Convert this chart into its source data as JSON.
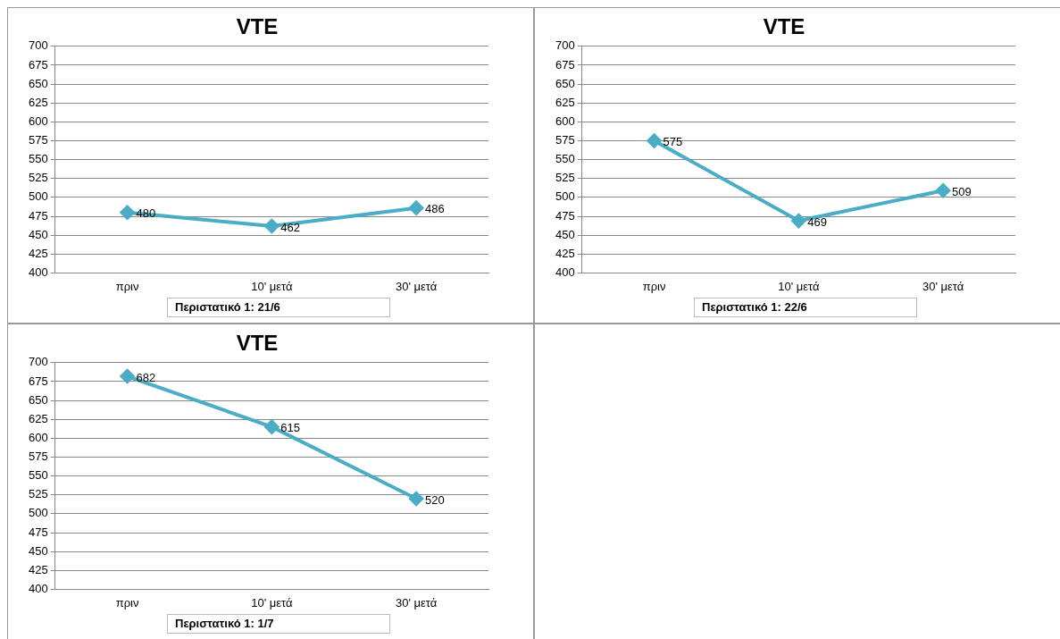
{
  "chart_data": [
    {
      "type": "line",
      "title": "VTE",
      "xlabel": "Περιστατικό 1: 21/6",
      "categories": [
        "πριν",
        "10' μετά",
        "30' μετά"
      ],
      "series": [
        {
          "color": "#4bacc6",
          "values": [
            480,
            462,
            486
          ]
        }
      ],
      "ylim": [
        400,
        700
      ],
      "yticks": [
        400,
        425,
        450,
        475,
        500,
        525,
        550,
        575,
        600,
        625,
        650,
        675,
        700
      ],
      "grid": "y",
      "marker": "diamond",
      "data_labels": true,
      "legend": false
    },
    {
      "type": "line",
      "title": "VTE",
      "xlabel": "Περιστατικό 1: 22/6",
      "categories": [
        "πριν",
        "10' μετά",
        "30' μετά"
      ],
      "series": [
        {
          "color": "#4bacc6",
          "values": [
            575,
            469,
            509
          ]
        }
      ],
      "ylim": [
        400,
        700
      ],
      "yticks": [
        400,
        425,
        450,
        475,
        500,
        525,
        550,
        575,
        600,
        625,
        650,
        675,
        700
      ],
      "grid": "y",
      "marker": "diamond",
      "data_labels": true,
      "legend": false
    },
    {
      "type": "line",
      "title": "VTE",
      "xlabel": "Περιστατικό 1: 1/7",
      "categories": [
        "πριν",
        "10' μετά",
        "30' μετά"
      ],
      "series": [
        {
          "color": "#4bacc6",
          "values": [
            682,
            615,
            520
          ]
        }
      ],
      "ylim": [
        400,
        700
      ],
      "yticks": [
        400,
        425,
        450,
        475,
        500,
        525,
        550,
        575,
        600,
        625,
        650,
        675,
        700
      ],
      "grid": "y",
      "marker": "diamond",
      "data_labels": true,
      "legend": false
    }
  ]
}
